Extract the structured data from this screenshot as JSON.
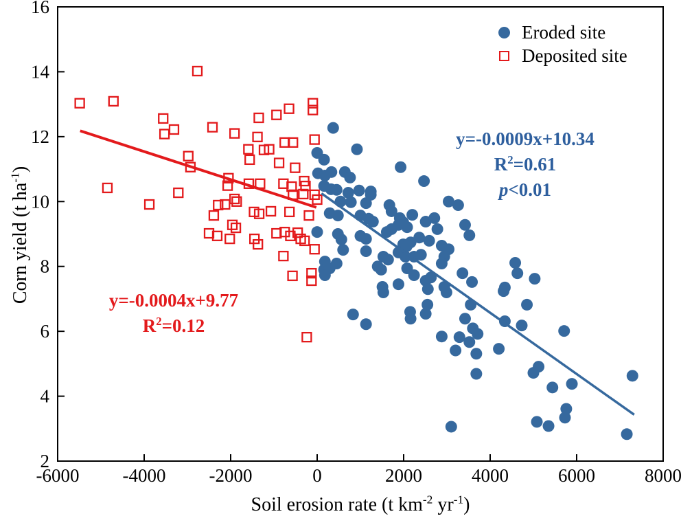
{
  "chart_data": {
    "type": "scatter",
    "title": "",
    "xlabel_parts": {
      "p1": "Soil erosion rate (t km",
      "sup1": "-2",
      "p2": " yr",
      "sup2": "-1",
      "p3": ")"
    },
    "ylabel_parts": {
      "p1": "Corn yield (t ha",
      "sup1": "-1",
      "p2": ")"
    },
    "xlim": [
      -6000,
      8000
    ],
    "ylim": [
      2,
      16
    ],
    "x_ticks": [
      "-6000",
      "-4000",
      "-2000",
      "0",
      "2000",
      "4000",
      "6000",
      "8000"
    ],
    "y_ticks": [
      "2",
      "4",
      "6",
      "8",
      "10",
      "12",
      "14",
      "16"
    ],
    "grid": false,
    "legend_position": "top-right-inside",
    "colors": {
      "eroded": "#36699e",
      "deposited": "#e31a1c",
      "eroded_text": "#2e5f9e",
      "axis": "#000000"
    },
    "legend": {
      "items": [
        {
          "label": "Eroded site",
          "marker": "filled-circle",
          "color": "#36699e"
        },
        {
          "label": "Deposited site",
          "marker": "open-square",
          "color": "#e31a1c"
        }
      ]
    },
    "series": [
      {
        "name": "Eroded site",
        "marker": "filled-circle",
        "color": "#36699e",
        "points": [
          [
            370,
            12.27
          ],
          [
            0,
            11.5
          ],
          [
            160,
            11.29
          ],
          [
            920,
            11.61
          ],
          [
            1930,
            11.06
          ],
          [
            2470,
            10.63
          ],
          [
            20,
            10.87
          ],
          [
            180,
            10.8
          ],
          [
            330,
            10.91
          ],
          [
            640,
            10.91
          ],
          [
            760,
            10.74
          ],
          [
            160,
            10.48
          ],
          [
            320,
            10.38
          ],
          [
            450,
            10.36
          ],
          [
            720,
            10.27
          ],
          [
            970,
            10.34
          ],
          [
            1240,
            10.31
          ],
          [
            540,
            10.0
          ],
          [
            780,
            9.98
          ],
          [
            1130,
            9.95
          ],
          [
            1240,
            10.21
          ],
          [
            290,
            9.64
          ],
          [
            480,
            9.57
          ],
          [
            1000,
            9.57
          ],
          [
            1190,
            9.47
          ],
          [
            1290,
            9.38
          ],
          [
            1670,
            9.89
          ],
          [
            1720,
            9.7
          ],
          [
            1910,
            9.49
          ],
          [
            1990,
            9.36
          ],
          [
            2200,
            9.59
          ],
          [
            2510,
            9.38
          ],
          [
            2710,
            9.49
          ],
          [
            2780,
            9.15
          ],
          [
            3040,
            10.0
          ],
          [
            3260,
            9.89
          ],
          [
            3420,
            9.28
          ],
          [
            3520,
            8.96
          ],
          [
            0,
            9.06
          ],
          [
            480,
            9.0
          ],
          [
            560,
            8.83
          ],
          [
            600,
            8.51
          ],
          [
            1000,
            8.94
          ],
          [
            1130,
            8.85
          ],
          [
            1610,
            9.06
          ],
          [
            1720,
            9.15
          ],
          [
            1880,
            9.28
          ],
          [
            2080,
            9.21
          ],
          [
            2160,
            8.74
          ],
          [
            2360,
            8.89
          ],
          [
            2590,
            8.79
          ],
          [
            1990,
            8.68
          ],
          [
            2070,
            8.62
          ],
          [
            1880,
            8.43
          ],
          [
            1530,
            8.3
          ],
          [
            1640,
            8.21
          ],
          [
            2040,
            8.3
          ],
          [
            2240,
            8.3
          ],
          [
            2400,
            8.36
          ],
          [
            2880,
            8.64
          ],
          [
            3040,
            8.53
          ],
          [
            2940,
            8.3
          ],
          [
            180,
            8.15
          ],
          [
            450,
            8.09
          ],
          [
            160,
            7.9
          ],
          [
            290,
            7.94
          ],
          [
            1130,
            8.47
          ],
          [
            1400,
            8.0
          ],
          [
            1480,
            7.9
          ],
          [
            2080,
            7.94
          ],
          [
            2240,
            7.73
          ],
          [
            2510,
            7.56
          ],
          [
            2630,
            7.66
          ],
          [
            2880,
            8.09
          ],
          [
            3360,
            7.79
          ],
          [
            3580,
            7.52
          ],
          [
            180,
            7.73
          ],
          [
            1510,
            7.37
          ],
          [
            1880,
            7.45
          ],
          [
            2940,
            7.37
          ],
          [
            4580,
            8.11
          ],
          [
            4630,
            7.79
          ],
          [
            5030,
            7.62
          ],
          [
            4340,
            7.35
          ],
          [
            1530,
            7.2
          ],
          [
            2560,
            7.3
          ],
          [
            2990,
            7.2
          ],
          [
            3550,
            6.82
          ],
          [
            830,
            6.52
          ],
          [
            1130,
            6.22
          ],
          [
            2150,
            6.6
          ],
          [
            2160,
            6.39
          ],
          [
            2510,
            6.54
          ],
          [
            2550,
            6.82
          ],
          [
            2880,
            5.84
          ],
          [
            3290,
            5.82
          ],
          [
            3420,
            6.39
          ],
          [
            3520,
            5.67
          ],
          [
            3600,
            6.09
          ],
          [
            3710,
            5.92
          ],
          [
            3200,
            5.41
          ],
          [
            3680,
            5.31
          ],
          [
            3680,
            4.69
          ],
          [
            3100,
            3.06
          ],
          [
            4310,
            7.24
          ],
          [
            4850,
            6.82
          ],
          [
            4340,
            6.31
          ],
          [
            4730,
            6.18
          ],
          [
            5710,
            6.01
          ],
          [
            4200,
            5.46
          ],
          [
            5120,
            4.91
          ],
          [
            5000,
            4.72
          ],
          [
            5440,
            4.27
          ],
          [
            5890,
            4.38
          ],
          [
            7290,
            4.63
          ],
          [
            5760,
            3.61
          ],
          [
            5730,
            3.34
          ],
          [
            5080,
            3.21
          ],
          [
            5350,
            3.08
          ],
          [
            7160,
            2.83
          ]
        ]
      },
      {
        "name": "Deposited site",
        "marker": "open-square",
        "color": "#e31a1c",
        "points": [
          [
            -5490,
            13.03
          ],
          [
            -4710,
            13.09
          ],
          [
            -2770,
            14.02
          ],
          [
            -3560,
            12.56
          ],
          [
            -3530,
            12.08
          ],
          [
            -3310,
            12.22
          ],
          [
            -2980,
            11.4
          ],
          [
            -2930,
            11.06
          ],
          [
            -4850,
            10.42
          ],
          [
            -3880,
            9.91
          ],
          [
            -3210,
            10.27
          ],
          [
            -100,
            13.03
          ],
          [
            -100,
            12.82
          ],
          [
            -650,
            12.86
          ],
          [
            -940,
            12.67
          ],
          [
            -1350,
            12.58
          ],
          [
            -2420,
            12.29
          ],
          [
            -1910,
            12.1
          ],
          [
            -1380,
            11.99
          ],
          [
            -750,
            11.82
          ],
          [
            -560,
            11.82
          ],
          [
            -60,
            11.91
          ],
          [
            -1590,
            11.61
          ],
          [
            -1230,
            11.59
          ],
          [
            -1110,
            11.61
          ],
          [
            -1560,
            11.29
          ],
          [
            -880,
            11.19
          ],
          [
            -510,
            11.04
          ],
          [
            -2050,
            10.72
          ],
          [
            -2070,
            10.49
          ],
          [
            -1580,
            10.55
          ],
          [
            -1320,
            10.55
          ],
          [
            -780,
            10.55
          ],
          [
            -590,
            10.46
          ],
          [
            -300,
            10.63
          ],
          [
            -270,
            10.48
          ],
          [
            -560,
            10.21
          ],
          [
            -320,
            10.23
          ],
          [
            -60,
            10.21
          ],
          [
            0,
            10.06
          ],
          [
            -1910,
            10.08
          ],
          [
            -1860,
            10.0
          ],
          [
            -2290,
            9.89
          ],
          [
            -2130,
            9.91
          ],
          [
            -2390,
            9.57
          ],
          [
            -1460,
            9.68
          ],
          [
            -1340,
            9.62
          ],
          [
            -1070,
            9.7
          ],
          [
            -640,
            9.68
          ],
          [
            -190,
            9.57
          ],
          [
            -1960,
            9.28
          ],
          [
            -1880,
            9.19
          ],
          [
            -2500,
            9.02
          ],
          [
            -2310,
            8.94
          ],
          [
            -2020,
            8.85
          ],
          [
            -1450,
            8.85
          ],
          [
            -1370,
            8.68
          ],
          [
            -940,
            9.02
          ],
          [
            -750,
            9.06
          ],
          [
            -620,
            8.94
          ],
          [
            -450,
            9.04
          ],
          [
            -380,
            8.85
          ],
          [
            -290,
            8.79
          ],
          [
            -60,
            8.53
          ],
          [
            -780,
            8.32
          ],
          [
            -570,
            7.71
          ],
          [
            -130,
            7.79
          ],
          [
            -130,
            7.56
          ],
          [
            -240,
            5.82
          ]
        ]
      }
    ],
    "trendlines": [
      {
        "series": "Eroded site",
        "color": "#36699e",
        "x1": 100,
        "y1": 10.25,
        "x2": 7330,
        "y2": 3.43
      },
      {
        "series": "Deposited site",
        "color": "#e31a1c",
        "x1": -5480,
        "y1": 12.18,
        "x2": -20,
        "y2": 9.82
      }
    ],
    "annotations": {
      "eroded": {
        "equation": "y=-0.0009x+10.34",
        "r_label": "R",
        "r_sup": "2",
        "r_value": "=0.61",
        "p_label": "p",
        "p_value": "<0.01"
      },
      "deposited": {
        "equation": "y=-0.0004x+9.77",
        "r_label": "R",
        "r_sup": "2",
        "r_value": "=0.12"
      }
    }
  }
}
